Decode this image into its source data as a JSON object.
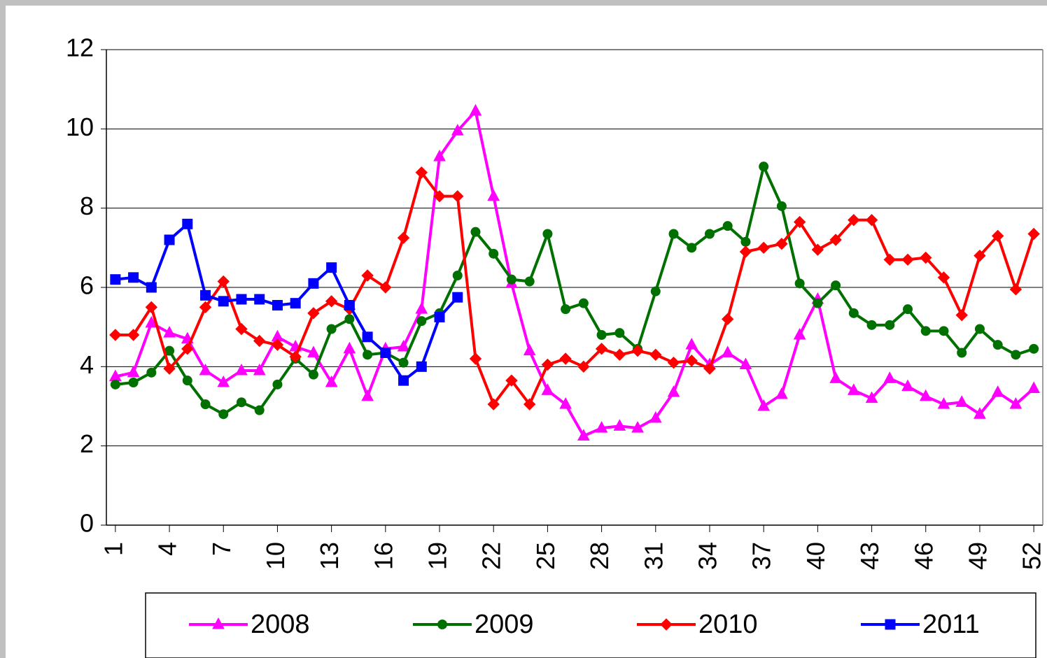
{
  "chart_data": {
    "type": "line",
    "x": [
      1,
      2,
      3,
      4,
      5,
      6,
      7,
      8,
      9,
      10,
      11,
      12,
      13,
      14,
      15,
      16,
      17,
      18,
      19,
      20,
      21,
      22,
      23,
      24,
      25,
      26,
      27,
      28,
      29,
      30,
      31,
      32,
      33,
      34,
      35,
      36,
      37,
      38,
      39,
      40,
      41,
      42,
      43,
      44,
      45,
      46,
      47,
      48,
      49,
      50,
      51,
      52
    ],
    "xlim": [
      0.5,
      52.5
    ],
    "xticks": [
      1,
      4,
      7,
      10,
      13,
      16,
      19,
      22,
      25,
      28,
      31,
      34,
      37,
      40,
      43,
      46,
      49,
      52
    ],
    "ylim": [
      0,
      12
    ],
    "yticks": [
      0,
      2,
      4,
      6,
      8,
      10,
      12
    ],
    "grid": true,
    "legend": "bottom",
    "series": [
      {
        "name": "2008",
        "color": "#ff00ff",
        "marker": "triangle",
        "values": [
          3.75,
          3.85,
          5.1,
          4.85,
          4.7,
          3.9,
          3.6,
          3.9,
          3.9,
          4.75,
          4.5,
          4.35,
          3.6,
          4.45,
          3.25,
          4.45,
          4.5,
          5.45,
          9.3,
          9.95,
          10.45,
          8.3,
          6.1,
          4.4,
          3.4,
          3.05,
          2.25,
          2.45,
          2.5,
          2.45,
          2.7,
          3.35,
          4.55,
          4.05,
          4.35,
          4.05,
          3.0,
          3.3,
          4.8,
          5.7,
          3.7,
          3.4,
          3.2,
          3.7,
          3.5,
          3.25,
          3.05,
          3.1,
          2.8,
          3.35,
          3.05,
          3.45
        ]
      },
      {
        "name": "2009",
        "color": "#007000",
        "marker": "circle",
        "values": [
          3.55,
          3.6,
          3.85,
          4.4,
          3.65,
          3.05,
          2.8,
          3.1,
          2.9,
          3.55,
          4.2,
          3.8,
          4.95,
          5.2,
          4.3,
          4.35,
          4.1,
          5.15,
          5.35,
          6.3,
          7.4,
          6.85,
          6.2,
          6.15,
          7.35,
          5.45,
          5.6,
          4.8,
          4.85,
          4.45,
          5.9,
          7.35,
          7.0,
          7.35,
          7.55,
          7.15,
          9.05,
          8.05,
          6.1,
          5.6,
          6.05,
          5.35,
          5.05,
          5.05,
          5.45,
          4.9,
          4.9,
          4.35,
          4.95,
          4.55,
          4.3,
          4.45
        ]
      },
      {
        "name": "2010",
        "color": "#ff0000",
        "marker": "diamond",
        "values": [
          4.8,
          4.8,
          5.5,
          3.95,
          4.45,
          5.5,
          6.15,
          4.95,
          4.65,
          4.55,
          4.25,
          5.35,
          5.65,
          5.45,
          6.3,
          6.0,
          7.25,
          8.9,
          8.3,
          8.3,
          4.2,
          3.05,
          3.65,
          3.05,
          4.05,
          4.2,
          4.0,
          4.45,
          4.3,
          4.4,
          4.3,
          4.1,
          4.15,
          3.95,
          5.2,
          6.9,
          7.0,
          7.1,
          7.65,
          6.95,
          7.2,
          7.7,
          7.7,
          6.7,
          6.7,
          6.75,
          6.25,
          5.3,
          6.8,
          7.3,
          5.95,
          7.35
        ]
      },
      {
        "name": "2011",
        "color": "#0000ff",
        "marker": "square",
        "values": [
          6.2,
          6.25,
          6.0,
          7.2,
          7.6,
          5.8,
          5.65,
          5.7,
          5.7,
          5.55,
          5.6,
          6.1,
          6.5,
          5.55,
          4.75,
          4.35,
          3.65,
          4.0,
          5.25,
          5.75,
          null,
          null,
          null,
          null,
          null,
          null,
          null,
          null,
          null,
          null,
          null,
          null,
          null,
          null,
          null,
          null,
          null,
          null,
          null,
          null,
          null,
          null,
          null,
          null,
          null,
          null,
          null,
          null,
          null,
          null,
          null,
          null
        ]
      }
    ]
  }
}
